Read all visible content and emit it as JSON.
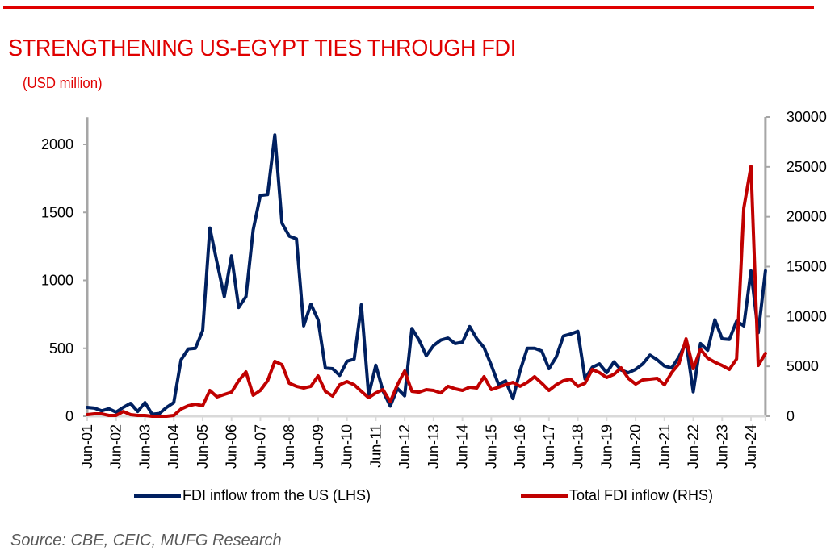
{
  "header": {
    "title": "STRENGTHENING US-EGYPT TIES THROUGH FDI",
    "subtitle": "(USD million)"
  },
  "colors": {
    "accent": "#e00000",
    "us_series": "#002060",
    "total_series": "#c00000",
    "axis": "#a6a6a6"
  },
  "source": "Source: CBE, CEIC, MUFG Research",
  "chart_data": {
    "type": "line",
    "title": "STRENGTHENING US-EGYPT TIES THROUGH FDI",
    "subtitle": "(USD million)",
    "frequency": "quarterly",
    "x_start": "Jun-01",
    "x_tick_labels": [
      "Jun-01",
      "Jun-02",
      "Jun-03",
      "Jun-04",
      "Jun-05",
      "Jun-06",
      "Jun-07",
      "Jun-08",
      "Jun-09",
      "Jun-10",
      "Jun-11",
      "Jun-12",
      "Jun-13",
      "Jun-14",
      "Jun-15",
      "Jun-16",
      "Jun-17",
      "Jun-18",
      "Jun-19",
      "Jun-20",
      "Jun-21",
      "Jun-22",
      "Jun-23",
      "Jun-24"
    ],
    "y_left": {
      "label": "LHS",
      "ylim": [
        0,
        2200
      ],
      "ticks": [
        0,
        500,
        1000,
        1500,
        2000
      ]
    },
    "y_right": {
      "label": "RHS",
      "ylim": [
        0,
        30000
      ],
      "ticks": [
        0,
        5000,
        10000,
        15000,
        20000,
        25000,
        30000
      ]
    },
    "grid": false,
    "legend_position": "bottom",
    "series": [
      {
        "name": "FDI inflow from the US (LHS)",
        "axis": "left",
        "values": [
          65,
          60,
          40,
          55,
          30,
          65,
          95,
          35,
          100,
          15,
          20,
          65,
          100,
          415,
          495,
          500,
          630,
          1385,
          1130,
          880,
          1180,
          800,
          880,
          1370,
          1625,
          1630,
          2070,
          1420,
          1325,
          1305,
          665,
          825,
          710,
          355,
          350,
          300,
          405,
          420,
          820,
          155,
          375,
          185,
          75,
          205,
          150,
          645,
          560,
          445,
          520,
          560,
          575,
          535,
          545,
          660,
          570,
          505,
          375,
          235,
          260,
          130,
          335,
          500,
          500,
          480,
          350,
          435,
          590,
          605,
          625,
          275,
          360,
          385,
          320,
          400,
          340,
          320,
          345,
          385,
          450,
          415,
          370,
          355,
          435,
          545,
          180,
          535,
          485,
          710,
          570,
          565,
          700,
          665,
          1070,
          615,
          1070
        ]
      },
      {
        "name": "Total FDI inflow (RHS)",
        "axis": "right",
        "values": [
          160,
          240,
          240,
          80,
          80,
          480,
          160,
          80,
          80,
          0,
          0,
          0,
          80,
          730,
          1050,
          1210,
          1050,
          2590,
          1940,
          2180,
          2420,
          3560,
          4450,
          2100,
          2590,
          3560,
          5500,
          5170,
          3310,
          3000,
          2830,
          3000,
          4040,
          2500,
          2020,
          3150,
          3480,
          3150,
          2500,
          1860,
          2340,
          2670,
          1455,
          3150,
          4530,
          2500,
          2420,
          2670,
          2590,
          2340,
          3000,
          2750,
          2590,
          2910,
          2830,
          3960,
          2670,
          2910,
          3150,
          3400,
          3000,
          3400,
          3960,
          3310,
          2590,
          3150,
          3560,
          3720,
          3000,
          3310,
          4690,
          4370,
          3880,
          4200,
          4850,
          3800,
          3230,
          3640,
          3720,
          3800,
          3150,
          4370,
          5250,
          7760,
          4770,
          6710,
          5820,
          5420,
          5090,
          4690,
          5740,
          20860,
          25060,
          5090,
          6300
        ]
      }
    ]
  }
}
